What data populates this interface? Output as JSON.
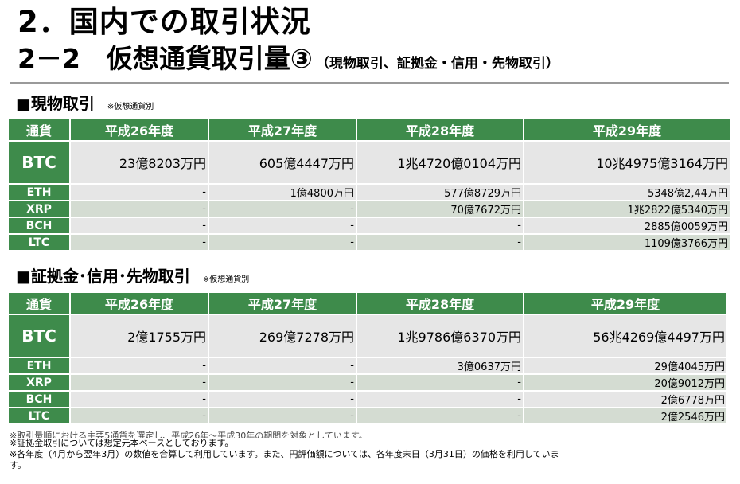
{
  "title_main": "2．国内での取引状況",
  "title_sub": "2－2　仮想通貨取引量③",
  "title_sub_paren": "（現物取引、証拠金・信用・先物取引）",
  "sections": [
    {
      "heading": "■現物取引",
      "note": "※仮想通貨別",
      "headers": [
        "通貨",
        "平成26年度",
        "平成27年度",
        "平成28年度",
        "平成29年度"
      ],
      "rows": [
        {
          "name": "BTC",
          "values": [
            "23億8203万円",
            "605億4447万円",
            "1兆4720億0104万円",
            "10兆4975億3164万円"
          ]
        },
        {
          "name": "ETH",
          "values": [
            "-",
            "1億4800万円",
            "577億8729万円",
            "5348億2,44万円"
          ]
        },
        {
          "name": "XRP",
          "values": [
            "-",
            "-",
            "70億7672万円",
            "1兆2822億5340万円"
          ]
        },
        {
          "name": "BCH",
          "values": [
            "-",
            "-",
            "-",
            "2885億0059万円"
          ]
        },
        {
          "name": "LTC",
          "values": [
            "-",
            "-",
            "-",
            "1109億3766万円"
          ]
        }
      ]
    },
    {
      "heading": "■証拠金･信用･先物取引",
      "note": "※仮想通貨別",
      "headers": [
        "通貨",
        "平成26年度",
        "平成27年度",
        "平成28年度",
        "平成29年度"
      ],
      "rows": [
        {
          "name": "BTC",
          "values": [
            "2億1755万円",
            "269億7278万円",
            "1兆9786億6370万円",
            "56兆4269億4497万円"
          ]
        },
        {
          "name": "ETH",
          "values": [
            "-",
            "-",
            "3億0637万円",
            "29億4045万円"
          ]
        },
        {
          "name": "XRP",
          "values": [
            "-",
            "-",
            "-",
            "20億9012万円"
          ]
        },
        {
          "name": "BCH",
          "values": [
            "-",
            "-",
            "-",
            "2億6778万円"
          ]
        },
        {
          "name": "LTC",
          "values": [
            "-",
            "-",
            "-",
            "2億2546万円"
          ]
        }
      ]
    }
  ],
  "footnotes": [
    "※取引量順における主要5通貨を選定し、平成26年～平成30年の期間を対象としています。",
    "※証拠金取引については想定元本ベースとしております。",
    "※各年度（4月から翌年3月）の数値を合算して利用しています。また、円評価額については、各年度末日（3月31日）の価格を利用していま",
    "す。"
  ],
  "colors": {
    "header_green": "#3e8b4b",
    "cell_gray": "#e6e6e6",
    "cell_alt": "#d4dcd2"
  }
}
